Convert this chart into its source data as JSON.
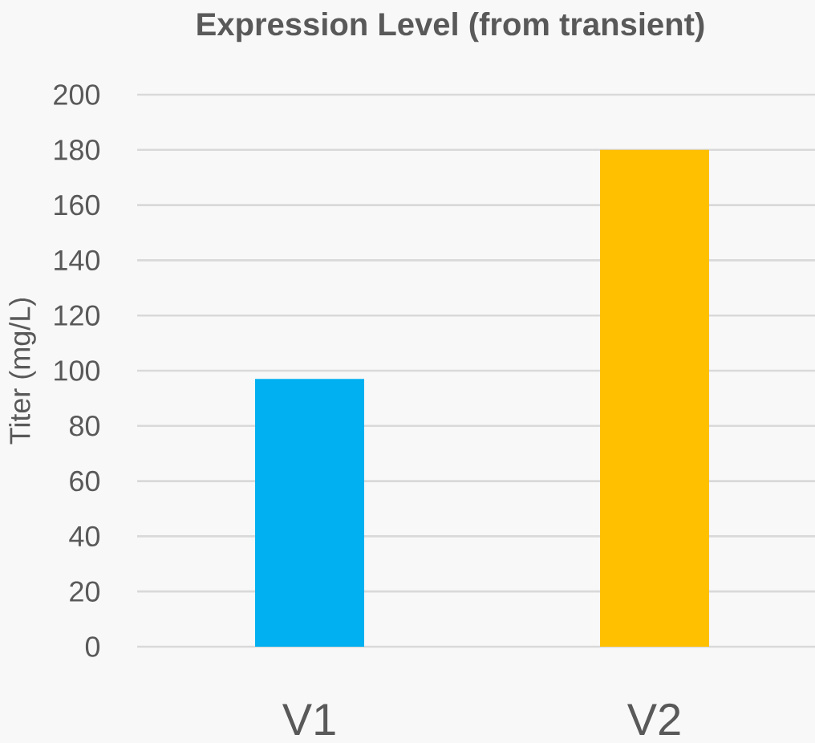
{
  "chart_data": {
    "type": "bar",
    "title": "Expression Level (from transient)",
    "ylabel": "Titer (mg/L)",
    "categories": [
      "V1",
      "V2"
    ],
    "values": [
      97,
      180
    ],
    "colors": [
      "#00b0f0",
      "#ffc000"
    ],
    "ylim": [
      0,
      200
    ],
    "yticks": [
      0,
      20,
      40,
      60,
      80,
      100,
      120,
      140,
      160,
      180,
      200
    ],
    "grid": "y"
  }
}
